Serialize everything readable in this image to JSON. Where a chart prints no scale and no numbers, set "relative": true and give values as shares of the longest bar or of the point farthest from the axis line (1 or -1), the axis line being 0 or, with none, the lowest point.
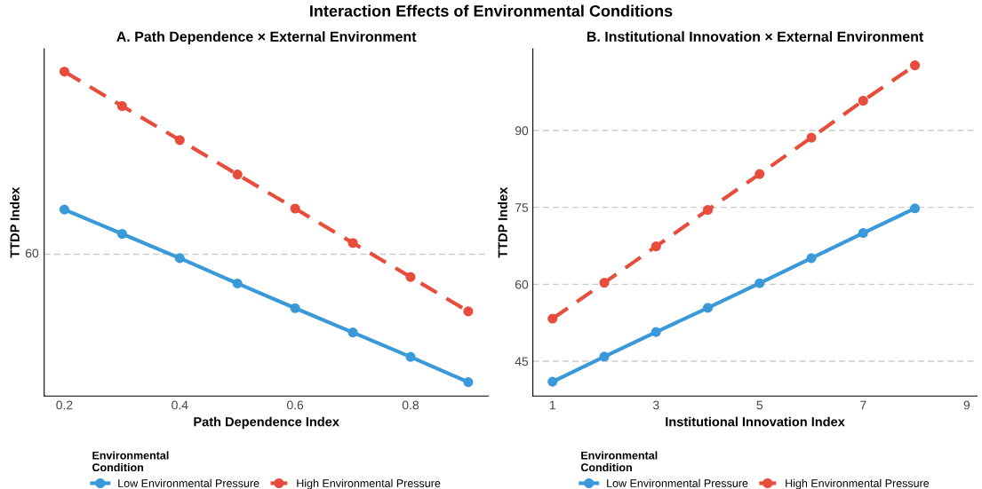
{
  "chart_data": [
    {
      "type": "line",
      "title": "Interaction Effects of Environmental Conditions",
      "subtitle": "A. Path Dependence × External Environment",
      "xlabel": "Path Dependence Index",
      "ylabel": "TTDP Index",
      "legend_title": "Environmental\nCondition",
      "x": [
        0.2,
        0.3,
        0.4,
        0.5,
        0.6,
        0.7,
        0.8,
        0.9
      ],
      "xlim": [
        0.165,
        0.935
      ],
      "xticks": [
        0.2,
        0.4,
        0.6,
        0.8
      ],
      "relative": true,
      "series": [
        {
          "name": "Low Environmental Pressure",
          "color": "#3a9ad9",
          "line_style": "solid",
          "values": [
            0.575,
            0.5,
            0.425,
            0.347,
            0.271,
            0.196,
            0.121,
            0.043
          ]
        },
        {
          "name": "High Environmental Pressure",
          "color": "#e74c3c",
          "line_style": "dashed",
          "values": [
            1,
            0.894,
            0.789,
            0.683,
            0.578,
            0.472,
            0.367,
            0.261
          ]
        }
      ],
      "ref_lines": [
        {
          "axis": "y",
          "value": 0.437,
          "color": "#cccccc",
          "line_style": "dashed"
        }
      ],
      "annotations": [
        "60"
      ],
      "marker": "circle",
      "legend": "bottom"
    },
    {
      "type": "line",
      "subtitle": "B. Institutional Innovation × External Environment",
      "xlabel": "Institutional Innovation Index",
      "ylabel": "TTDP Index",
      "legend_title": "Environmental\nCondition",
      "x": [
        1,
        2,
        3,
        4,
        5,
        6,
        7,
        8
      ],
      "xlim": [
        0.62,
        9.2
      ],
      "xticks": [
        1,
        3,
        5,
        7,
        9
      ],
      "ylim": [
        38.2,
        105.9
      ],
      "yticks": [
        45,
        60,
        75,
        90
      ],
      "series": [
        {
          "name": "Low Environmental Pressure",
          "color": "#3a9ad9",
          "line_style": "solid",
          "values": [
            41.0,
            45.9,
            50.7,
            55.4,
            60.2,
            65.1,
            70.0,
            74.8
          ]
        },
        {
          "name": "High Environmental Pressure",
          "color": "#e74c3c",
          "line_style": "dashed",
          "values": [
            53.3,
            60.3,
            67.4,
            74.5,
            81.5,
            88.6,
            95.8,
            102.7
          ]
        }
      ],
      "grid": "y",
      "marker": "circle",
      "legend": "bottom"
    }
  ]
}
